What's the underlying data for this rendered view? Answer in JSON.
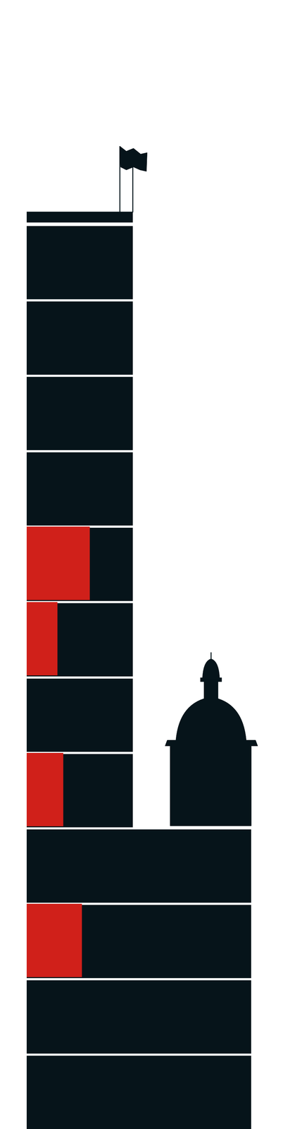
{
  "chart_data": {
    "type": "bar",
    "orientation": "horizontal",
    "categories": [
      null,
      null,
      null,
      null,
      null,
      null,
      null,
      null,
      null,
      null,
      null,
      null
    ],
    "values": [
      0,
      0,
      0,
      0,
      28.1,
      13.7,
      0,
      16.3,
      0,
      24.6,
      0,
      0
    ],
    "color": "#d0201a",
    "xlim": [
      0,
      100
    ],
    "tick_labels": false,
    "grid": false
  }
}
